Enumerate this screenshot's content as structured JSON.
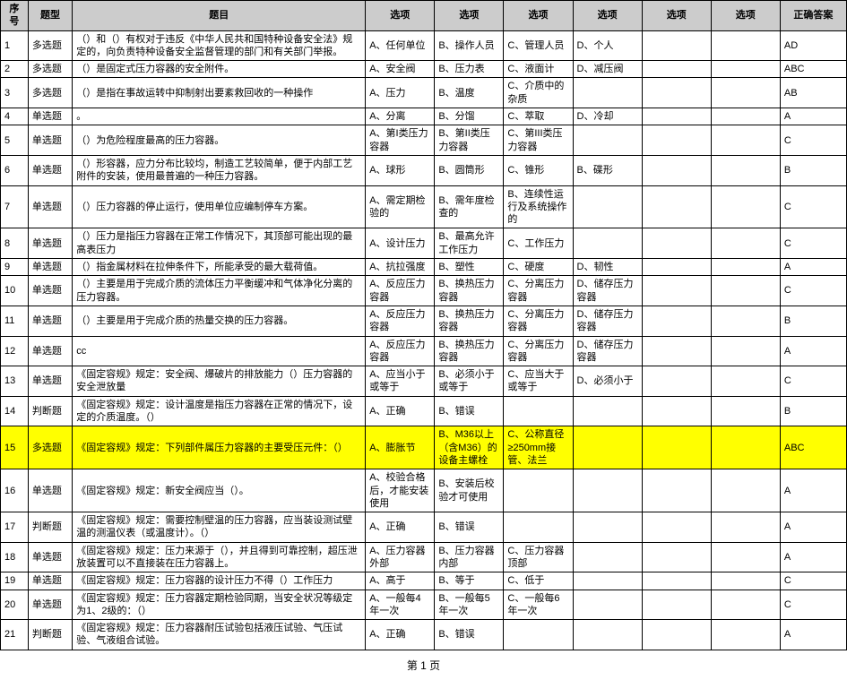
{
  "headers": [
    "序号",
    "题型",
    "题目",
    "选项",
    "选项",
    "选项",
    "选项",
    "选项",
    "选项",
    "正确答案"
  ],
  "footer": "第 1 页",
  "rows": [
    {
      "seq": "1",
      "type": "多选题",
      "q": "（）和（）有权对于违反《中华人民共和国特种设备安全法》规定的，向负责特种设备安全监督管理的部门和有关部门举报。",
      "a": "A、任何单位",
      "b": "B、操作人员",
      "c": "C、管理人员",
      "d": "D、个人",
      "e": "",
      "f": "",
      "ans": "AD",
      "hl": false
    },
    {
      "seq": "2",
      "type": "多选题",
      "q": "（）是固定式压力容器的安全附件。",
      "a": "A、安全阀",
      "b": "B、压力表",
      "c": "C、液面计",
      "d": "D、减压阀",
      "e": "",
      "f": "",
      "ans": "ABC",
      "hl": false
    },
    {
      "seq": "3",
      "type": "多选题",
      "q": "（）是指在事故运转中抑制射出要紊救回收的一种操作",
      "a": "A、压力",
      "b": "B、温度",
      "c": "C、介质中的杂质",
      "d": "",
      "e": "",
      "f": "",
      "ans": "AB",
      "hl": false
    },
    {
      "seq": "4",
      "type": "单选题",
      "q": "。",
      "a": "A、分离",
      "b": "B、分馏",
      "c": "C、萃取",
      "d": "D、冷却",
      "e": "",
      "f": "",
      "ans": "A",
      "hl": false
    },
    {
      "seq": "5",
      "type": "单选题",
      "q": "（）为危险程度最高的压力容器。",
      "a": "A、第I类压力容器",
      "b": "B、第II类压力容器",
      "c": "C、第III类压力容器",
      "d": "",
      "e": "",
      "f": "",
      "ans": "C",
      "hl": false
    },
    {
      "seq": "6",
      "type": "单选题",
      "q": "（）形容器，应力分布比较均，制造工艺较简单，便于内部工艺附件的安装，使用最普遍的一种压力容器。",
      "a": "A、球形",
      "b": "B、圆筒形",
      "c": "C、锥形",
      "d": "B、碟形",
      "e": "",
      "f": "",
      "ans": "B",
      "hl": false
    },
    {
      "seq": "7",
      "type": "单选题",
      "q": "（）压力容器的停止运行，使用单位应编制停车方案。",
      "a": "A、需定期检验的",
      "b": "B、需年度检查的",
      "c": "B、连续性运行及系统操作的",
      "d": "",
      "e": "",
      "f": "",
      "ans": "C",
      "hl": false
    },
    {
      "seq": "8",
      "type": "单选题",
      "q": "（）压力是指压力容器在正常工作情况下，其顶部可能出现的最高表压力",
      "a": "A、设计压力",
      "b": "B、最高允许工作压力",
      "c": "C、工作压力",
      "d": "",
      "e": "",
      "f": "",
      "ans": "C",
      "hl": false
    },
    {
      "seq": "9",
      "type": "单选题",
      "q": "（）指金属材料在拉伸条件下，所能承受的最大载荷值。",
      "a": "A、抗拉强度",
      "b": "B、塑性",
      "c": "C、硬度",
      "d": "D、韧性",
      "e": "",
      "f": "",
      "ans": "A",
      "hl": false
    },
    {
      "seq": "10",
      "type": "单选题",
      "q": "（）主要是用于完成介质的流体压力平衡缓冲和气体净化分离的压力容器。",
      "a": "A、反应压力容器",
      "b": "B、换热压力容器",
      "c": "C、分离压力容器",
      "d": "D、储存压力容器",
      "e": "",
      "f": "",
      "ans": "C",
      "hl": false
    },
    {
      "seq": "11",
      "type": "单选题",
      "q": "（）主要是用于完成介质的热量交换的压力容器。",
      "a": "A、反应压力容器",
      "b": "B、换热压力容器",
      "c": "C、分离压力容器",
      "d": "D、储存压力容器",
      "e": "",
      "f": "",
      "ans": "B",
      "hl": false
    },
    {
      "seq": "12",
      "type": "单选题",
      "q": "cc",
      "a": "A、反应压力容器",
      "b": "B、换热压力容器",
      "c": "C、分离压力容器",
      "d": "D、储存压力容器",
      "e": "",
      "f": "",
      "ans": "A",
      "hl": false
    },
    {
      "seq": "13",
      "type": "单选题",
      "q": "《固定容规》规定：安全阀、爆破片的排放能力（）压力容器的安全泄放量",
      "a": "A、应当小于或等于",
      "b": "B、必须小于或等于",
      "c": "C、应当大于或等于",
      "d": "D、必须小于",
      "e": "",
      "f": "",
      "ans": "C",
      "hl": false
    },
    {
      "seq": "14",
      "type": "判断题",
      "q": "《固定容规》规定：设计温度是指压力容器在正常的情况下，设定的介质温度。（）",
      "a": "A、正确",
      "b": "B、错误",
      "c": "",
      "d": "",
      "e": "",
      "f": "",
      "ans": "B",
      "hl": false
    },
    {
      "seq": "15",
      "type": "多选题",
      "q": "《固定容规》规定：下列部件属压力容器的主要受压元件：（）",
      "a": "A、膨胀节",
      "b": "B、M36以上（含M36）的设备主螺栓",
      "c": "C、公称直径≥250mm接管、法兰",
      "d": "",
      "e": "",
      "f": "",
      "ans": "ABC",
      "hl": true
    },
    {
      "seq": "16",
      "type": "单选题",
      "q": "《固定容规》规定：新安全阀应当（）。",
      "a": "A、校验合格后，才能安装使用",
      "b": "B、安装后校验才可使用",
      "c": "",
      "d": "",
      "e": "",
      "f": "",
      "ans": "A",
      "hl": false
    },
    {
      "seq": "17",
      "type": "判断题",
      "q": "《固定容规》规定：需要控制壁温的压力容器，应当装设测试壁温的测温仪表（或温度计）。（）",
      "a": "A、正确",
      "b": "B、错误",
      "c": "",
      "d": "",
      "e": "",
      "f": "",
      "ans": "A",
      "hl": false
    },
    {
      "seq": "18",
      "type": "单选题",
      "q": "《固定容规》规定：压力来源于（），并且得到可靠控制，超压泄放装置可以不直接装在压力容器上。",
      "a": "A、压力容器外部",
      "b": "B、压力容器内部",
      "c": "C、压力容器顶部",
      "d": "",
      "e": "",
      "f": "",
      "ans": "A",
      "hl": false
    },
    {
      "seq": "19",
      "type": "单选题",
      "q": "《固定容规》规定：压力容器的设计压力不得（）工作压力",
      "a": "A、高于",
      "b": "B、等于",
      "c": "C、低于",
      "d": "",
      "e": "",
      "f": "",
      "ans": "C",
      "hl": false
    },
    {
      "seq": "20",
      "type": "单选题",
      "q": "《固定容规》规定：压力容器定期检验同期，当安全状况等级定为1、2级的：（）",
      "a": "A、一般每4年一次",
      "b": "B、一般每5年一次",
      "c": "C、一般每6年一次",
      "d": "",
      "e": "",
      "f": "",
      "ans": "C",
      "hl": false
    },
    {
      "seq": "21",
      "type": "判断题",
      "q": "《固定容规》规定：压力容器耐压试验包括液压试验、气压试验、气液组合试验。",
      "a": "A、正确",
      "b": "B、错误",
      "c": "",
      "d": "",
      "e": "",
      "f": "",
      "ans": "A",
      "hl": false
    }
  ]
}
